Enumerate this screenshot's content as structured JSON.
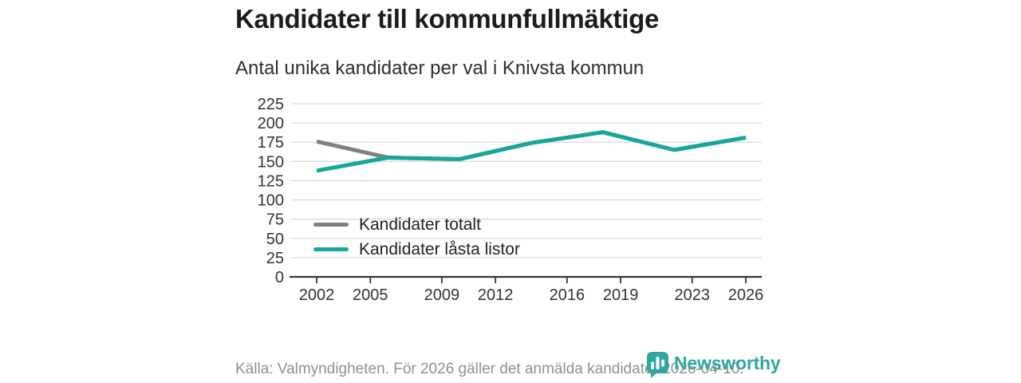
{
  "header": {
    "title": "Kandidater till kommunfullmäktige",
    "subtitle": "Antal unika kandidater per val i Knivsta kommun"
  },
  "chart_data": {
    "type": "line",
    "title": "Kandidater till kommunfullmäktige",
    "subtitle": "Antal unika kandidater per val i Knivsta kommun",
    "x": [
      2002,
      2006,
      2010,
      2014,
      2018,
      2022,
      2026
    ],
    "series": [
      {
        "name": "Kandidater totalt",
        "color": "#808080",
        "values": [
          176,
          155,
          153,
          174,
          188,
          165,
          181
        ]
      },
      {
        "name": "Kandidater låsta listor",
        "color": "#17a79a",
        "values": [
          138,
          155,
          153,
          174,
          188,
          165,
          181
        ]
      }
    ],
    "xlim": [
      2002,
      2026
    ],
    "ylim": [
      0,
      225
    ],
    "y_ticks": [
      0,
      25,
      50,
      75,
      100,
      125,
      150,
      175,
      200,
      225
    ],
    "x_tick_years": [
      2002,
      2005,
      2009,
      2012,
      2016,
      2019,
      2023,
      2026
    ],
    "x_tick_labels": [
      "2002",
      "2005",
      "2009",
      "2012",
      "2016",
      "2019",
      "2023",
      "2026"
    ],
    "grid": "horizontal",
    "legend_position": "inside-left"
  },
  "footer": {
    "source": "Källa: Valmyndigheten. För 2026 gäller det anmälda kandidater 2026-04-10.",
    "brand": "Newsworthy"
  },
  "colors": {
    "accent": "#17a79a",
    "gray_line": "#808080",
    "grid": "#dcdcdc",
    "axis": "#333333",
    "brand": "#2fa79f",
    "muted_text": "#909090"
  }
}
